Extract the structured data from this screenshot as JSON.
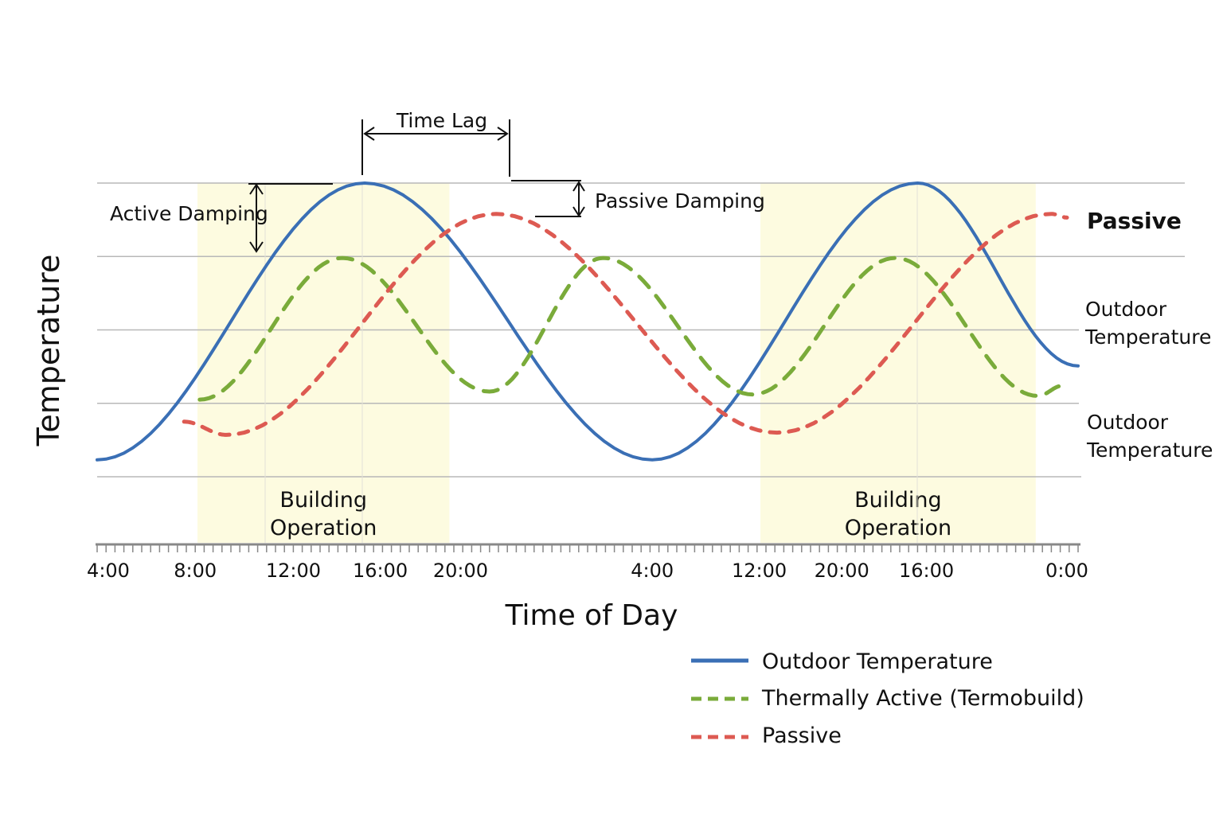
{
  "chart_data": {
    "type": "line",
    "title": "",
    "xlabel": "Time of Day",
    "ylabel": "Temperature",
    "xlim": [
      4,
      48
    ],
    "ylim": [
      0,
      4
    ],
    "grid": true,
    "legend_placement": "bottom-right",
    "x_tick_labels": [
      {
        "x": 4.5,
        "label": "4:00"
      },
      {
        "x": 8.4,
        "label": "8:00"
      },
      {
        "x": 12.8,
        "label": "12:00"
      },
      {
        "x": 16.7,
        "label": "16:00"
      },
      {
        "x": 20.3,
        "label": "20:00"
      },
      {
        "x": 28.9,
        "label": "4:00"
      },
      {
        "x": 33.7,
        "label": "12:00"
      },
      {
        "x": 37.4,
        "label": "20:00"
      },
      {
        "x": 41.2,
        "label": "16:00"
      },
      {
        "x": 47.5,
        "label": "0:00"
      }
    ],
    "series": [
      {
        "name": "Outdoor Temperature",
        "color": "#3a6fb5",
        "style": "solid",
        "points": [
          [
            4,
            0.23
          ],
          [
            16,
            4.0
          ],
          [
            28.9,
            0.23
          ],
          [
            40.8,
            4.0
          ],
          [
            48,
            1.51
          ]
        ]
      },
      {
        "name": "Thermally Active (Termobuild)",
        "color": "#7aab3a",
        "style": "dashed",
        "points": [
          [
            8.6,
            1.05
          ],
          [
            15,
            2.98
          ],
          [
            21.6,
            1.16
          ],
          [
            26.7,
            2.98
          ],
          [
            33.4,
            1.12
          ],
          [
            39.8,
            2.98
          ],
          [
            46.2,
            1.1
          ],
          [
            47.3,
            1.24
          ]
        ]
      },
      {
        "name": "Passive",
        "color": "#dd5a52",
        "style": "dashed",
        "points": [
          [
            7.9,
            0.75
          ],
          [
            9.8,
            0.57
          ],
          [
            21.9,
            3.58
          ],
          [
            34.5,
            0.6
          ],
          [
            46.8,
            3.58
          ],
          [
            47.5,
            3.53
          ]
        ]
      }
    ],
    "shaded_regions": [
      {
        "from": 8.5,
        "to": 19.8,
        "label": [
          "Building",
          "Operation"
        ],
        "color": "#fdfbe0"
      },
      {
        "from": 33.75,
        "to": 46.1,
        "label": [
          "Building",
          "Operation"
        ],
        "color": "#fdfbe0"
      }
    ],
    "annotations": {
      "time_lag": "Time Lag",
      "active_damping": "Active Damping",
      "passive_damping": "Passive Damping",
      "right_labels": [
        [
          "Passive"
        ],
        [
          "Outdoor",
          "Temperature"
        ],
        [
          "Outdoor",
          "Temperature"
        ]
      ]
    },
    "legend": [
      {
        "label": "Outdoor Temperature",
        "color": "#3a6fb5",
        "style": "solid"
      },
      {
        "label": "Thermally Active (Termobuild)",
        "color": "#7aab3a",
        "style": "dashed"
      },
      {
        "label": "Passive",
        "color": "#dd5a52",
        "style": "dashed"
      }
    ]
  }
}
